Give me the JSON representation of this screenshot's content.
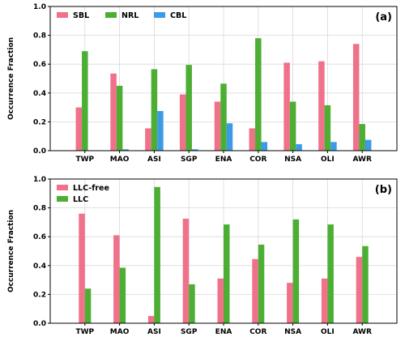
{
  "chart_data": [
    {
      "type": "bar",
      "panel_label": "(a)",
      "categories": [
        "TWP",
        "MAO",
        "ASI",
        "SGP",
        "ENA",
        "COR",
        "NSA",
        "OLI",
        "AWR"
      ],
      "series": [
        {
          "name": "SBL",
          "color": "#f0718a",
          "values": [
            0.3,
            0.535,
            0.155,
            0.39,
            0.34,
            0.155,
            0.61,
            0.62,
            0.74
          ]
        },
        {
          "name": "NRL",
          "color": "#4caf33",
          "values": [
            0.69,
            0.45,
            0.565,
            0.595,
            0.465,
            0.78,
            0.34,
            0.315,
            0.185
          ]
        },
        {
          "name": "CBL",
          "color": "#3d9be6",
          "values": [
            0.0,
            0.01,
            0.275,
            0.01,
            0.19,
            0.06,
            0.045,
            0.06,
            0.075
          ]
        }
      ],
      "ylabel": "Occurrence Fraction",
      "xlabel": "",
      "ylim": [
        0,
        1.0
      ],
      "yticks": [
        "0.0",
        "0.2",
        "0.4",
        "0.6",
        "0.8",
        "1.0"
      ],
      "grid": true,
      "legend": "top-left, horizontal"
    },
    {
      "type": "bar",
      "panel_label": "(b)",
      "categories": [
        "TWP",
        "MAO",
        "ASI",
        "SGP",
        "ENA",
        "COR",
        "NSA",
        "OLI",
        "AWR"
      ],
      "series": [
        {
          "name": "LLC-free",
          "color": "#f0718a",
          "values": [
            0.76,
            0.61,
            0.05,
            0.725,
            0.31,
            0.445,
            0.28,
            0.31,
            0.46
          ]
        },
        {
          "name": "LLC",
          "color": "#4caf33",
          "values": [
            0.24,
            0.385,
            0.945,
            0.27,
            0.685,
            0.545,
            0.72,
            0.685,
            0.535
          ]
        }
      ],
      "ylabel": "Occurrence Fraction",
      "xlabel": "",
      "ylim": [
        0,
        1.0
      ],
      "yticks": [
        "0.0",
        "0.2",
        "0.4",
        "0.6",
        "0.8",
        "1.0"
      ],
      "grid": true,
      "legend": "top-left, vertical"
    }
  ]
}
